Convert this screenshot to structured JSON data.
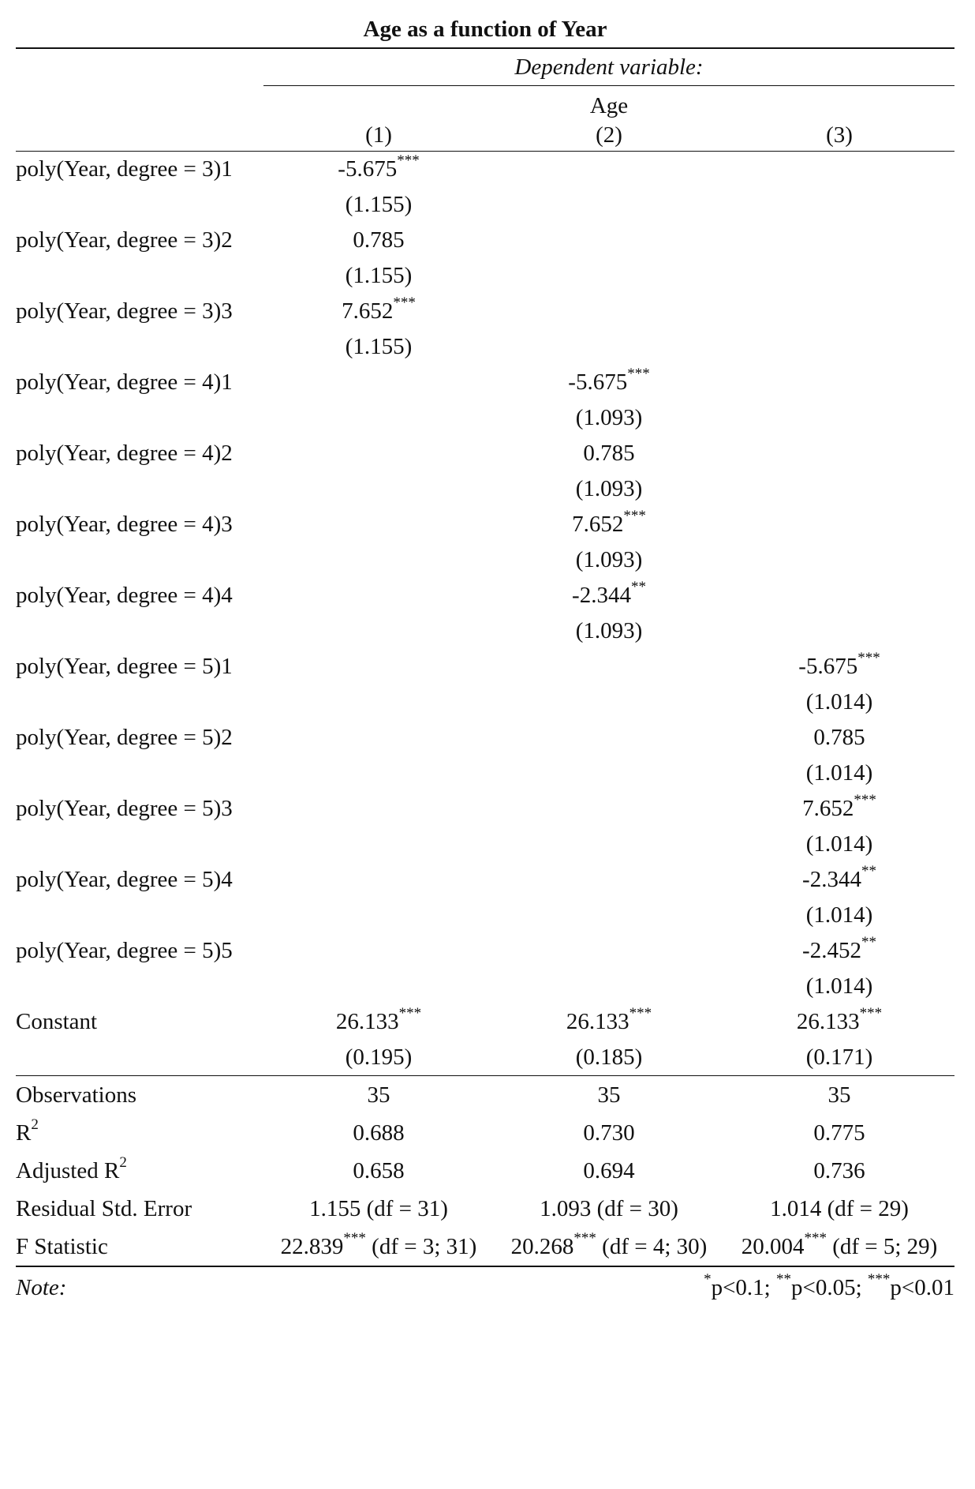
{
  "title": "Age as a function of Year",
  "header": {
    "dependent_variable": "Dependent variable:",
    "dv_name": "Age",
    "models": [
      "(1)",
      "(2)",
      "(3)"
    ]
  },
  "coefficients": [
    {
      "label": "poly(Year, degree = 3)1",
      "est": [
        "-5.675",
        "",
        ""
      ],
      "stars": [
        "***",
        "",
        ""
      ],
      "se": [
        "(1.155)",
        "",
        ""
      ]
    },
    {
      "label": "poly(Year, degree = 3)2",
      "est": [
        "0.785",
        "",
        ""
      ],
      "stars": [
        "",
        "",
        ""
      ],
      "se": [
        "(1.155)",
        "",
        ""
      ]
    },
    {
      "label": "poly(Year, degree = 3)3",
      "est": [
        "7.652",
        "",
        ""
      ],
      "stars": [
        "***",
        "",
        ""
      ],
      "se": [
        "(1.155)",
        "",
        ""
      ]
    },
    {
      "label": "poly(Year, degree = 4)1",
      "est": [
        "",
        "-5.675",
        ""
      ],
      "stars": [
        "",
        "***",
        ""
      ],
      "se": [
        "",
        "(1.093)",
        ""
      ]
    },
    {
      "label": "poly(Year, degree = 4)2",
      "est": [
        "",
        "0.785",
        ""
      ],
      "stars": [
        "",
        "",
        ""
      ],
      "se": [
        "",
        "(1.093)",
        ""
      ]
    },
    {
      "label": "poly(Year, degree = 4)3",
      "est": [
        "",
        "7.652",
        ""
      ],
      "stars": [
        "",
        "***",
        ""
      ],
      "se": [
        "",
        "(1.093)",
        ""
      ]
    },
    {
      "label": "poly(Year, degree = 4)4",
      "est": [
        "",
        "-2.344",
        ""
      ],
      "stars": [
        "",
        "**",
        ""
      ],
      "se": [
        "",
        "(1.093)",
        ""
      ]
    },
    {
      "label": "poly(Year, degree = 5)1",
      "est": [
        "",
        "",
        "-5.675"
      ],
      "stars": [
        "",
        "",
        "***"
      ],
      "se": [
        "",
        "",
        "(1.014)"
      ]
    },
    {
      "label": "poly(Year, degree = 5)2",
      "est": [
        "",
        "",
        "0.785"
      ],
      "stars": [
        "",
        "",
        ""
      ],
      "se": [
        "",
        "",
        "(1.014)"
      ]
    },
    {
      "label": "poly(Year, degree = 5)3",
      "est": [
        "",
        "",
        "7.652"
      ],
      "stars": [
        "",
        "",
        "***"
      ],
      "se": [
        "",
        "",
        "(1.014)"
      ]
    },
    {
      "label": "poly(Year, degree = 5)4",
      "est": [
        "",
        "",
        "-2.344"
      ],
      "stars": [
        "",
        "",
        "**"
      ],
      "se": [
        "",
        "",
        "(1.014)"
      ]
    },
    {
      "label": "poly(Year, degree = 5)5",
      "est": [
        "",
        "",
        "-2.452"
      ],
      "stars": [
        "",
        "",
        "**"
      ],
      "se": [
        "",
        "",
        "(1.014)"
      ]
    },
    {
      "label": "Constant",
      "est": [
        "26.133",
        "26.133",
        "26.133"
      ],
      "stars": [
        "***",
        "***",
        "***"
      ],
      "se": [
        "(0.195)",
        "(0.185)",
        "(0.171)"
      ]
    }
  ],
  "stats": {
    "observations": {
      "label": "Observations",
      "values": [
        "35",
        "35",
        "35"
      ]
    },
    "r2": {
      "label": "R",
      "sup": "2",
      "values": [
        "0.688",
        "0.730",
        "0.775"
      ]
    },
    "adj_r2": {
      "label": "Adjusted R",
      "sup": "2",
      "values": [
        "0.658",
        "0.694",
        "0.736"
      ]
    },
    "rse": {
      "label": "Residual Std. Error",
      "values": [
        "1.155 (df = 31)",
        "1.093 (df = 30)",
        "1.014 (df = 29)"
      ]
    },
    "fstat": {
      "label": "F Statistic",
      "values": [
        {
          "est": "22.839",
          "stars": "***",
          "df": " (df = 3; 31)"
        },
        {
          "est": "20.268",
          "stars": "***",
          "df": " (df = 4; 30)"
        },
        {
          "est": "20.004",
          "stars": "***",
          "df": " (df = 5; 29)"
        }
      ]
    }
  },
  "note": {
    "label": "Note:",
    "s1": "*",
    "t1": "p<0.1; ",
    "s2": "**",
    "t2": "p<0.05; ",
    "s3": "***",
    "t3": "p<0.01"
  }
}
